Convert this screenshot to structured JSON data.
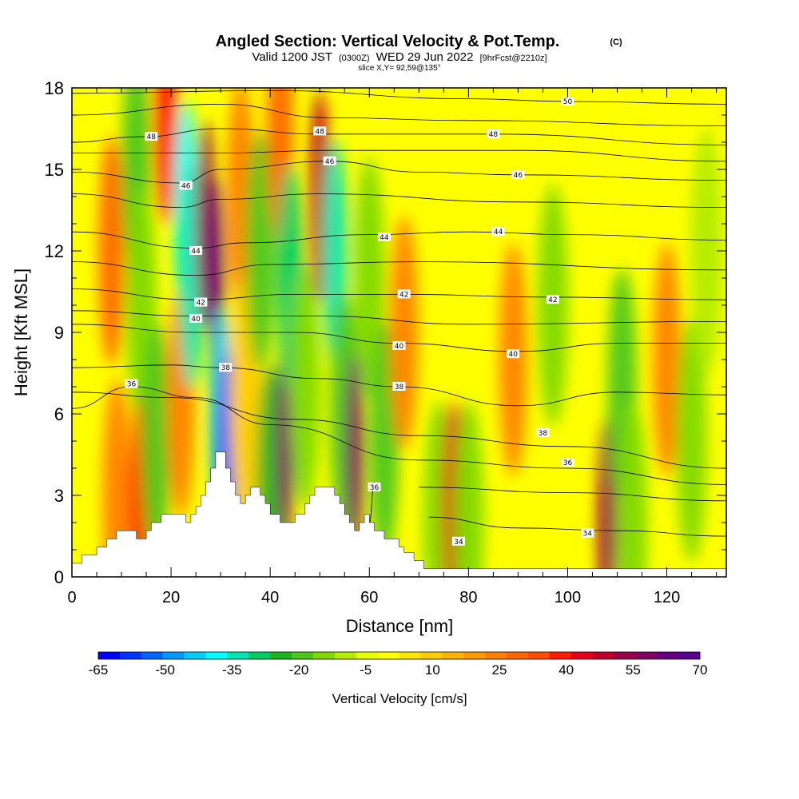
{
  "chart_data": {
    "type": "heatmap",
    "title": "Angled Section: Vertical Velocity & Pot.Temp.",
    "title_mark": "(C)",
    "subtitle": {
      "valid": "Valid 1200 JST",
      "zulu": "(0300Z)",
      "date": "WED 29 Jun 2022",
      "forecast": "[9hrFcst@2210z]"
    },
    "slice": "slice X,Y= 92,59@135°",
    "xlabel": "Distance [nm]",
    "ylabel": "Height [Kft MSL]",
    "xlim": [
      0,
      132
    ],
    "ylim": [
      0,
      18
    ],
    "x_ticks": [
      0,
      20,
      40,
      60,
      80,
      100,
      120
    ],
    "y_ticks": [
      0,
      3,
      6,
      9,
      12,
      15,
      18
    ],
    "colorbar": {
      "label": "Vertical Velocity [cm/s]",
      "min": -65,
      "max": 70,
      "step": 5,
      "tick_labels": [
        "-65",
        "-50",
        "-35",
        "-20",
        "-5",
        "10",
        "25",
        "40",
        "55",
        "70"
      ],
      "colors": [
        "#0000ff",
        "#0033ff",
        "#0066ff",
        "#0099ff",
        "#00ccff",
        "#00ffff",
        "#00e6b3",
        "#00cc66",
        "#1fb31f",
        "#4dc61a",
        "#80d900",
        "#b3ec00",
        "#e6ff00",
        "#ffff00",
        "#ffe600",
        "#ffcc00",
        "#ffb300",
        "#ff9900",
        "#ff7f00",
        "#ff6600",
        "#ff4d00",
        "#ff1a00",
        "#e6001a",
        "#c0002b",
        "#990047",
        "#800066",
        "#660080",
        "#5a0090"
      ]
    },
    "terrain_kft": [
      [
        0,
        0.5
      ],
      [
        2,
        0.5
      ],
      [
        2,
        0.8
      ],
      [
        5,
        0.8
      ],
      [
        5,
        1.1
      ],
      [
        7,
        1.1
      ],
      [
        7,
        1.4
      ],
      [
        9,
        1.4
      ],
      [
        9,
        1.7
      ],
      [
        13,
        1.7
      ],
      [
        13,
        1.4
      ],
      [
        15,
        1.4
      ],
      [
        15,
        1.7
      ],
      [
        16,
        1.7
      ],
      [
        16,
        2.0
      ],
      [
        18,
        2.0
      ],
      [
        18,
        2.3
      ],
      [
        23,
        2.3
      ],
      [
        23,
        2.0
      ],
      [
        24,
        2.0
      ],
      [
        24,
        2.3
      ],
      [
        25,
        2.3
      ],
      [
        25,
        2.6
      ],
      [
        26,
        2.6
      ],
      [
        26,
        3.0
      ],
      [
        27,
        3.0
      ],
      [
        27,
        3.5
      ],
      [
        28,
        3.5
      ],
      [
        28,
        4.0
      ],
      [
        29,
        4.0
      ],
      [
        29,
        4.6
      ],
      [
        31,
        4.6
      ],
      [
        31,
        4.0
      ],
      [
        32,
        4.0
      ],
      [
        32,
        3.5
      ],
      [
        33,
        3.5
      ],
      [
        33,
        3.0
      ],
      [
        34,
        3.0
      ],
      [
        34,
        2.7
      ],
      [
        35,
        2.7
      ],
      [
        35,
        3.0
      ],
      [
        36,
        3.0
      ],
      [
        36,
        3.3
      ],
      [
        38,
        3.3
      ],
      [
        38,
        3.0
      ],
      [
        39,
        3.0
      ],
      [
        39,
        2.7
      ],
      [
        40,
        2.7
      ],
      [
        40,
        2.3
      ],
      [
        42,
        2.3
      ],
      [
        42,
        2.0
      ],
      [
        45,
        2.0
      ],
      [
        45,
        2.3
      ],
      [
        47,
        2.3
      ],
      [
        47,
        2.7
      ],
      [
        48,
        2.7
      ],
      [
        48,
        3.0
      ],
      [
        49,
        3.0
      ],
      [
        49,
        3.3
      ],
      [
        53,
        3.3
      ],
      [
        53,
        3.0
      ],
      [
        54,
        3.0
      ],
      [
        54,
        2.7
      ],
      [
        55,
        2.7
      ],
      [
        55,
        2.3
      ],
      [
        56,
        2.3
      ],
      [
        56,
        2.0
      ],
      [
        57,
        2.0
      ],
      [
        57,
        1.7
      ],
      [
        58,
        1.7
      ],
      [
        58,
        2.0
      ],
      [
        59,
        2.0
      ],
      [
        59,
        2.3
      ],
      [
        60,
        2.3
      ],
      [
        60,
        2.0
      ],
      [
        61,
        2.0
      ],
      [
        61,
        1.7
      ],
      [
        63,
        1.7
      ],
      [
        63,
        1.4
      ],
      [
        66,
        1.4
      ],
      [
        66,
        1.1
      ],
      [
        67,
        1.1
      ],
      [
        67,
        0.9
      ],
      [
        69,
        0.9
      ],
      [
        69,
        0.6
      ],
      [
        71,
        0.6
      ],
      [
        71,
        0.3
      ],
      [
        132,
        0.3
      ]
    ],
    "vertical_velocity_cells": [
      {
        "x": 8,
        "z": 12,
        "w": 30
      },
      {
        "x": 9,
        "z": 3,
        "w": 25
      },
      {
        "x": 13,
        "z": 15,
        "w": -20
      },
      {
        "x": 14,
        "z": 10,
        "w": -15
      },
      {
        "x": 14,
        "z": 2.5,
        "w": 40
      },
      {
        "x": 17,
        "z": 5,
        "w": -20
      },
      {
        "x": 19,
        "z": 17,
        "w": 40
      },
      {
        "x": 22,
        "z": 6.5,
        "w": 25
      },
      {
        "x": 23,
        "z": 13.5,
        "w": -40
      },
      {
        "x": 24,
        "z": 11,
        "w": -35
      },
      {
        "x": 27,
        "z": 13,
        "w": 55
      },
      {
        "x": 29,
        "z": 11,
        "w": 65
      },
      {
        "x": 30,
        "z": 6,
        "w": -45
      },
      {
        "x": 31,
        "z": 4.5,
        "w": -60
      },
      {
        "x": 34,
        "z": 14,
        "w": 25
      },
      {
        "x": 35,
        "z": 6.5,
        "w": 10
      },
      {
        "x": 38,
        "z": 12,
        "w": -20
      },
      {
        "x": 40,
        "z": 3.5,
        "w": -25
      },
      {
        "x": 42,
        "z": 16.5,
        "w": 30
      },
      {
        "x": 43,
        "z": 5,
        "w": 60
      },
      {
        "x": 44,
        "z": 11,
        "w": -30
      },
      {
        "x": 47,
        "z": 7,
        "w": -15
      },
      {
        "x": 50,
        "z": 14,
        "w": 50
      },
      {
        "x": 53,
        "z": 12,
        "w": -35
      },
      {
        "x": 55,
        "z": 6,
        "w": -20
      },
      {
        "x": 57,
        "z": 4.5,
        "w": 60
      },
      {
        "x": 60,
        "z": 11,
        "w": -15
      },
      {
        "x": 63,
        "z": 5,
        "w": -20
      },
      {
        "x": 67,
        "z": 9,
        "w": 25
      },
      {
        "x": 74,
        "z": 2,
        "w": -15
      },
      {
        "x": 77,
        "z": 2.5,
        "w": 45
      },
      {
        "x": 80,
        "z": 2,
        "w": -15
      },
      {
        "x": 89,
        "z": 8,
        "w": 25
      },
      {
        "x": 97,
        "z": 10,
        "w": -15
      },
      {
        "x": 108,
        "z": 2,
        "w": 55
      },
      {
        "x": 111,
        "z": 7,
        "w": -20
      },
      {
        "x": 113,
        "z": 2,
        "w": -15
      },
      {
        "x": 120,
        "z": 8,
        "w": 25
      },
      {
        "x": 125,
        "z": 5,
        "w": -15
      },
      {
        "x": 128,
        "z": 12,
        "w": -10
      }
    ],
    "theta_contours": [
      {
        "value": 50,
        "points": [
          [
            0,
            17.8
          ],
          [
            40,
            17.9
          ],
          [
            80,
            17.6
          ],
          [
            100,
            17.5
          ],
          [
            132,
            17.4
          ]
        ],
        "label": {
          "text": "50",
          "x": 100,
          "z": 17.5
        }
      },
      {
        "value": 49,
        "points": [
          [
            0,
            17.0
          ],
          [
            30,
            17.4
          ],
          [
            52,
            16.9
          ],
          [
            80,
            16.8
          ],
          [
            132,
            16.6
          ]
        ]
      },
      {
        "value": 48,
        "points": [
          [
            0,
            16.0
          ],
          [
            14,
            16.2
          ],
          [
            30,
            16.5
          ],
          [
            50,
            16.3
          ],
          [
            85,
            16.3
          ],
          [
            132,
            15.9
          ]
        ],
        "labels": [
          {
            "text": "48",
            "x": 16,
            "z": 16.2
          },
          {
            "text": "48",
            "x": 50,
            "z": 16.4
          },
          {
            "text": "48",
            "x": 85,
            "z": 16.3
          }
        ]
      },
      {
        "value": 47,
        "points": [
          [
            0,
            15.6
          ],
          [
            30,
            15.6
          ],
          [
            52,
            15.7
          ],
          [
            90,
            15.7
          ],
          [
            132,
            15.3
          ]
        ]
      },
      {
        "value": 46,
        "points": [
          [
            0,
            14.9
          ],
          [
            22,
            14.5
          ],
          [
            30,
            15.0
          ],
          [
            52,
            15.3
          ],
          [
            70,
            14.9
          ],
          [
            90,
            14.8
          ],
          [
            132,
            14.6
          ]
        ],
        "labels": [
          {
            "text": "46",
            "x": 23,
            "z": 14.4
          },
          {
            "text": "46",
            "x": 52,
            "z": 15.3
          },
          {
            "text": "46",
            "x": 90,
            "z": 14.8
          }
        ]
      },
      {
        "value": 45,
        "points": [
          [
            0,
            14.1
          ],
          [
            22,
            13.6
          ],
          [
            30,
            13.9
          ],
          [
            50,
            14.1
          ],
          [
            90,
            13.8
          ],
          [
            132,
            13.6
          ]
        ]
      },
      {
        "value": 44,
        "points": [
          [
            0,
            12.7
          ],
          [
            25,
            12.1
          ],
          [
            35,
            12.3
          ],
          [
            60,
            12.6
          ],
          [
            80,
            12.7
          ],
          [
            100,
            12.6
          ],
          [
            132,
            12.4
          ]
        ],
        "labels": [
          {
            "text": "44",
            "x": 25,
            "z": 12.0
          },
          {
            "text": "44",
            "x": 63,
            "z": 12.5
          },
          {
            "text": "44",
            "x": 86,
            "z": 12.7
          }
        ]
      },
      {
        "value": 43,
        "points": [
          [
            0,
            11.6
          ],
          [
            25,
            11.1
          ],
          [
            40,
            11.5
          ],
          [
            70,
            11.6
          ],
          [
            132,
            11.3
          ]
        ]
      },
      {
        "value": 42,
        "points": [
          [
            0,
            10.6
          ],
          [
            25,
            10.2
          ],
          [
            45,
            10.4
          ],
          [
            68,
            10.4
          ],
          [
            95,
            10.3
          ],
          [
            132,
            10.2
          ]
        ],
        "labels": [
          {
            "text": "42",
            "x": 26,
            "z": 10.1
          },
          {
            "text": "42",
            "x": 67,
            "z": 10.4
          },
          {
            "text": "42",
            "x": 97,
            "z": 10.2
          }
        ]
      },
      {
        "value": 41,
        "points": [
          [
            0,
            9.8
          ],
          [
            25,
            9.6
          ],
          [
            50,
            9.6
          ],
          [
            80,
            9.3
          ],
          [
            132,
            9.4
          ]
        ]
      },
      {
        "value": 40,
        "points": [
          [
            0,
            9.3
          ],
          [
            25,
            9.0
          ],
          [
            45,
            9.0
          ],
          [
            66,
            8.6
          ],
          [
            90,
            8.3
          ],
          [
            110,
            8.6
          ],
          [
            132,
            8.6
          ]
        ],
        "labels": [
          {
            "text": "40",
            "x": 25,
            "z": 9.5
          },
          {
            "text": "40",
            "x": 66,
            "z": 8.5
          },
          {
            "text": "40",
            "x": 89,
            "z": 8.2
          }
        ]
      },
      {
        "value": 38,
        "points": [
          [
            0,
            7.7
          ],
          [
            20,
            7.8
          ],
          [
            30,
            7.7
          ],
          [
            50,
            7.3
          ],
          [
            66,
            7.0
          ],
          [
            90,
            6.3
          ],
          [
            110,
            6.8
          ],
          [
            132,
            6.7
          ]
        ],
        "labels": [
          {
            "text": "38",
            "x": 31,
            "z": 7.7
          },
          {
            "text": "38",
            "x": 66,
            "z": 7.0
          },
          {
            "text": "38",
            "x": 95,
            "z": 5.3
          }
        ]
      },
      {
        "value": 37,
        "points": [
          [
            0,
            6.8
          ],
          [
            20,
            6.6
          ],
          [
            45,
            5.8
          ],
          [
            70,
            5.2
          ],
          [
            100,
            4.8
          ],
          [
            132,
            4.0
          ]
        ]
      },
      {
        "value": 36,
        "points": [
          [
            0,
            6.2
          ],
          [
            12,
            7.0
          ],
          [
            25,
            6.6
          ],
          [
            40,
            5.6
          ],
          [
            70,
            4.3
          ],
          [
            100,
            4.0
          ],
          [
            132,
            3.4
          ]
        ],
        "labels": [
          {
            "text": "36",
            "x": 12,
            "z": 7.1
          },
          {
            "text": "36",
            "x": 100,
            "z": 4.2
          }
        ]
      },
      {
        "value": 35,
        "points": [
          [
            70,
            3.3
          ],
          [
            100,
            3.1
          ],
          [
            132,
            2.8
          ]
        ]
      },
      {
        "value": 34,
        "points": [
          [
            72,
            2.2
          ],
          [
            90,
            1.8
          ],
          [
            110,
            1.7
          ],
          [
            132,
            1.5
          ]
        ],
        "labels": [
          {
            "text": "34",
            "x": 78,
            "z": 1.3
          },
          {
            "text": "34",
            "x": 104,
            "z": 1.6
          }
        ]
      },
      {
        "value": 36,
        "points": [
          [
            60,
            2.0
          ],
          [
            61,
            3.5
          ]
        ],
        "label": {
          "text": "36",
          "x": 61,
          "z": 3.3
        }
      }
    ]
  }
}
